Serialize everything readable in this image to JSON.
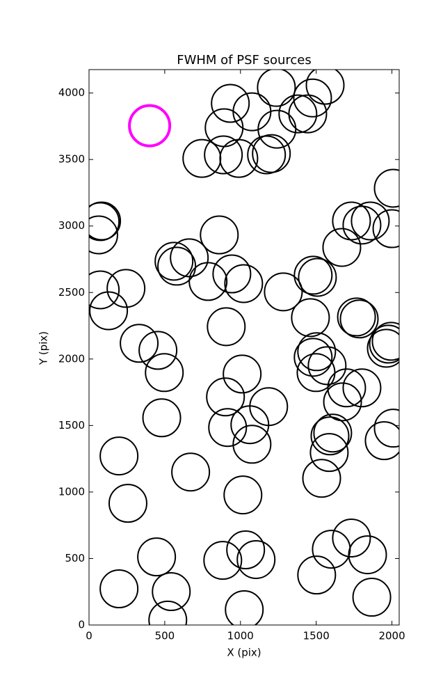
{
  "chart_data": {
    "type": "scatter",
    "title": "FWHM of PSF sources",
    "x_label": "X (pix)",
    "y_label": "Y (pix)",
    "xlim": [
      0,
      2048
    ],
    "ylim": [
      0,
      4176
    ],
    "xticks": [
      0,
      500,
      1000,
      1500,
      2000
    ],
    "yticks": [
      0,
      500,
      1000,
      1500,
      2000,
      2500,
      3000,
      3500,
      4000
    ],
    "series": [
      {
        "color": "#000000",
        "x": [
          933,
          1237,
          1476,
          1559,
          1076,
          1379,
          1444,
          892,
          1241,
          745,
          887,
          989,
          1172,
          1204,
          83,
          74,
          64,
          860,
          2009,
          1733,
          1857,
          1802,
          2000,
          1669,
          561,
          579,
          662,
          786,
          943,
          1021,
          74,
          244,
          129,
          1283,
          1480,
          1508,
          1462,
          1766,
          1784,
          906,
          331,
          455,
          497,
          1503,
          1480,
          1499,
          1572,
          1963,
          1995,
          1977,
          1011,
          901,
          1186,
          1701,
          1802,
          1674,
          1062,
          915,
          1076,
          480,
          2009,
          1949,
          1591,
          1609,
          1586,
          1536,
          198,
          671,
          257,
          1016,
          1733,
          1600,
          1839,
          1034,
          1103,
          883,
          446,
          1503,
          1867,
          198,
          543,
          1025,
          520
        ],
        "y": [
          3922,
          4042,
          3963,
          4058,
          3859,
          3843,
          3843,
          3739,
          3728,
          3508,
          3535,
          3508,
          3535,
          3545,
          3038,
          3033,
          2933,
          2933,
          3284,
          3038,
          3038,
          3007,
          2980,
          2839,
          2735,
          2698,
          2761,
          2583,
          2640,
          2567,
          2520,
          2531,
          2363,
          2505,
          2630,
          2614,
          2311,
          2316,
          2301,
          2243,
          2118,
          2065,
          1898,
          2055,
          2013,
          1898,
          1950,
          2081,
          2133,
          2112,
          1887,
          1715,
          1642,
          1783,
          1783,
          1678,
          1506,
          1485,
          1359,
          1558,
          1480,
          1386,
          1422,
          1443,
          1297,
          1103,
          1271,
          1150,
          915,
          978,
          654,
          570,
          528,
          565,
          492,
          486,
          512,
          376,
          209,
          272,
          251,
          115,
          37
        ]
      },
      {
        "color": "#ff00ff",
        "x": [
          400
        ],
        "y": [
          3754
        ]
      }
    ]
  }
}
